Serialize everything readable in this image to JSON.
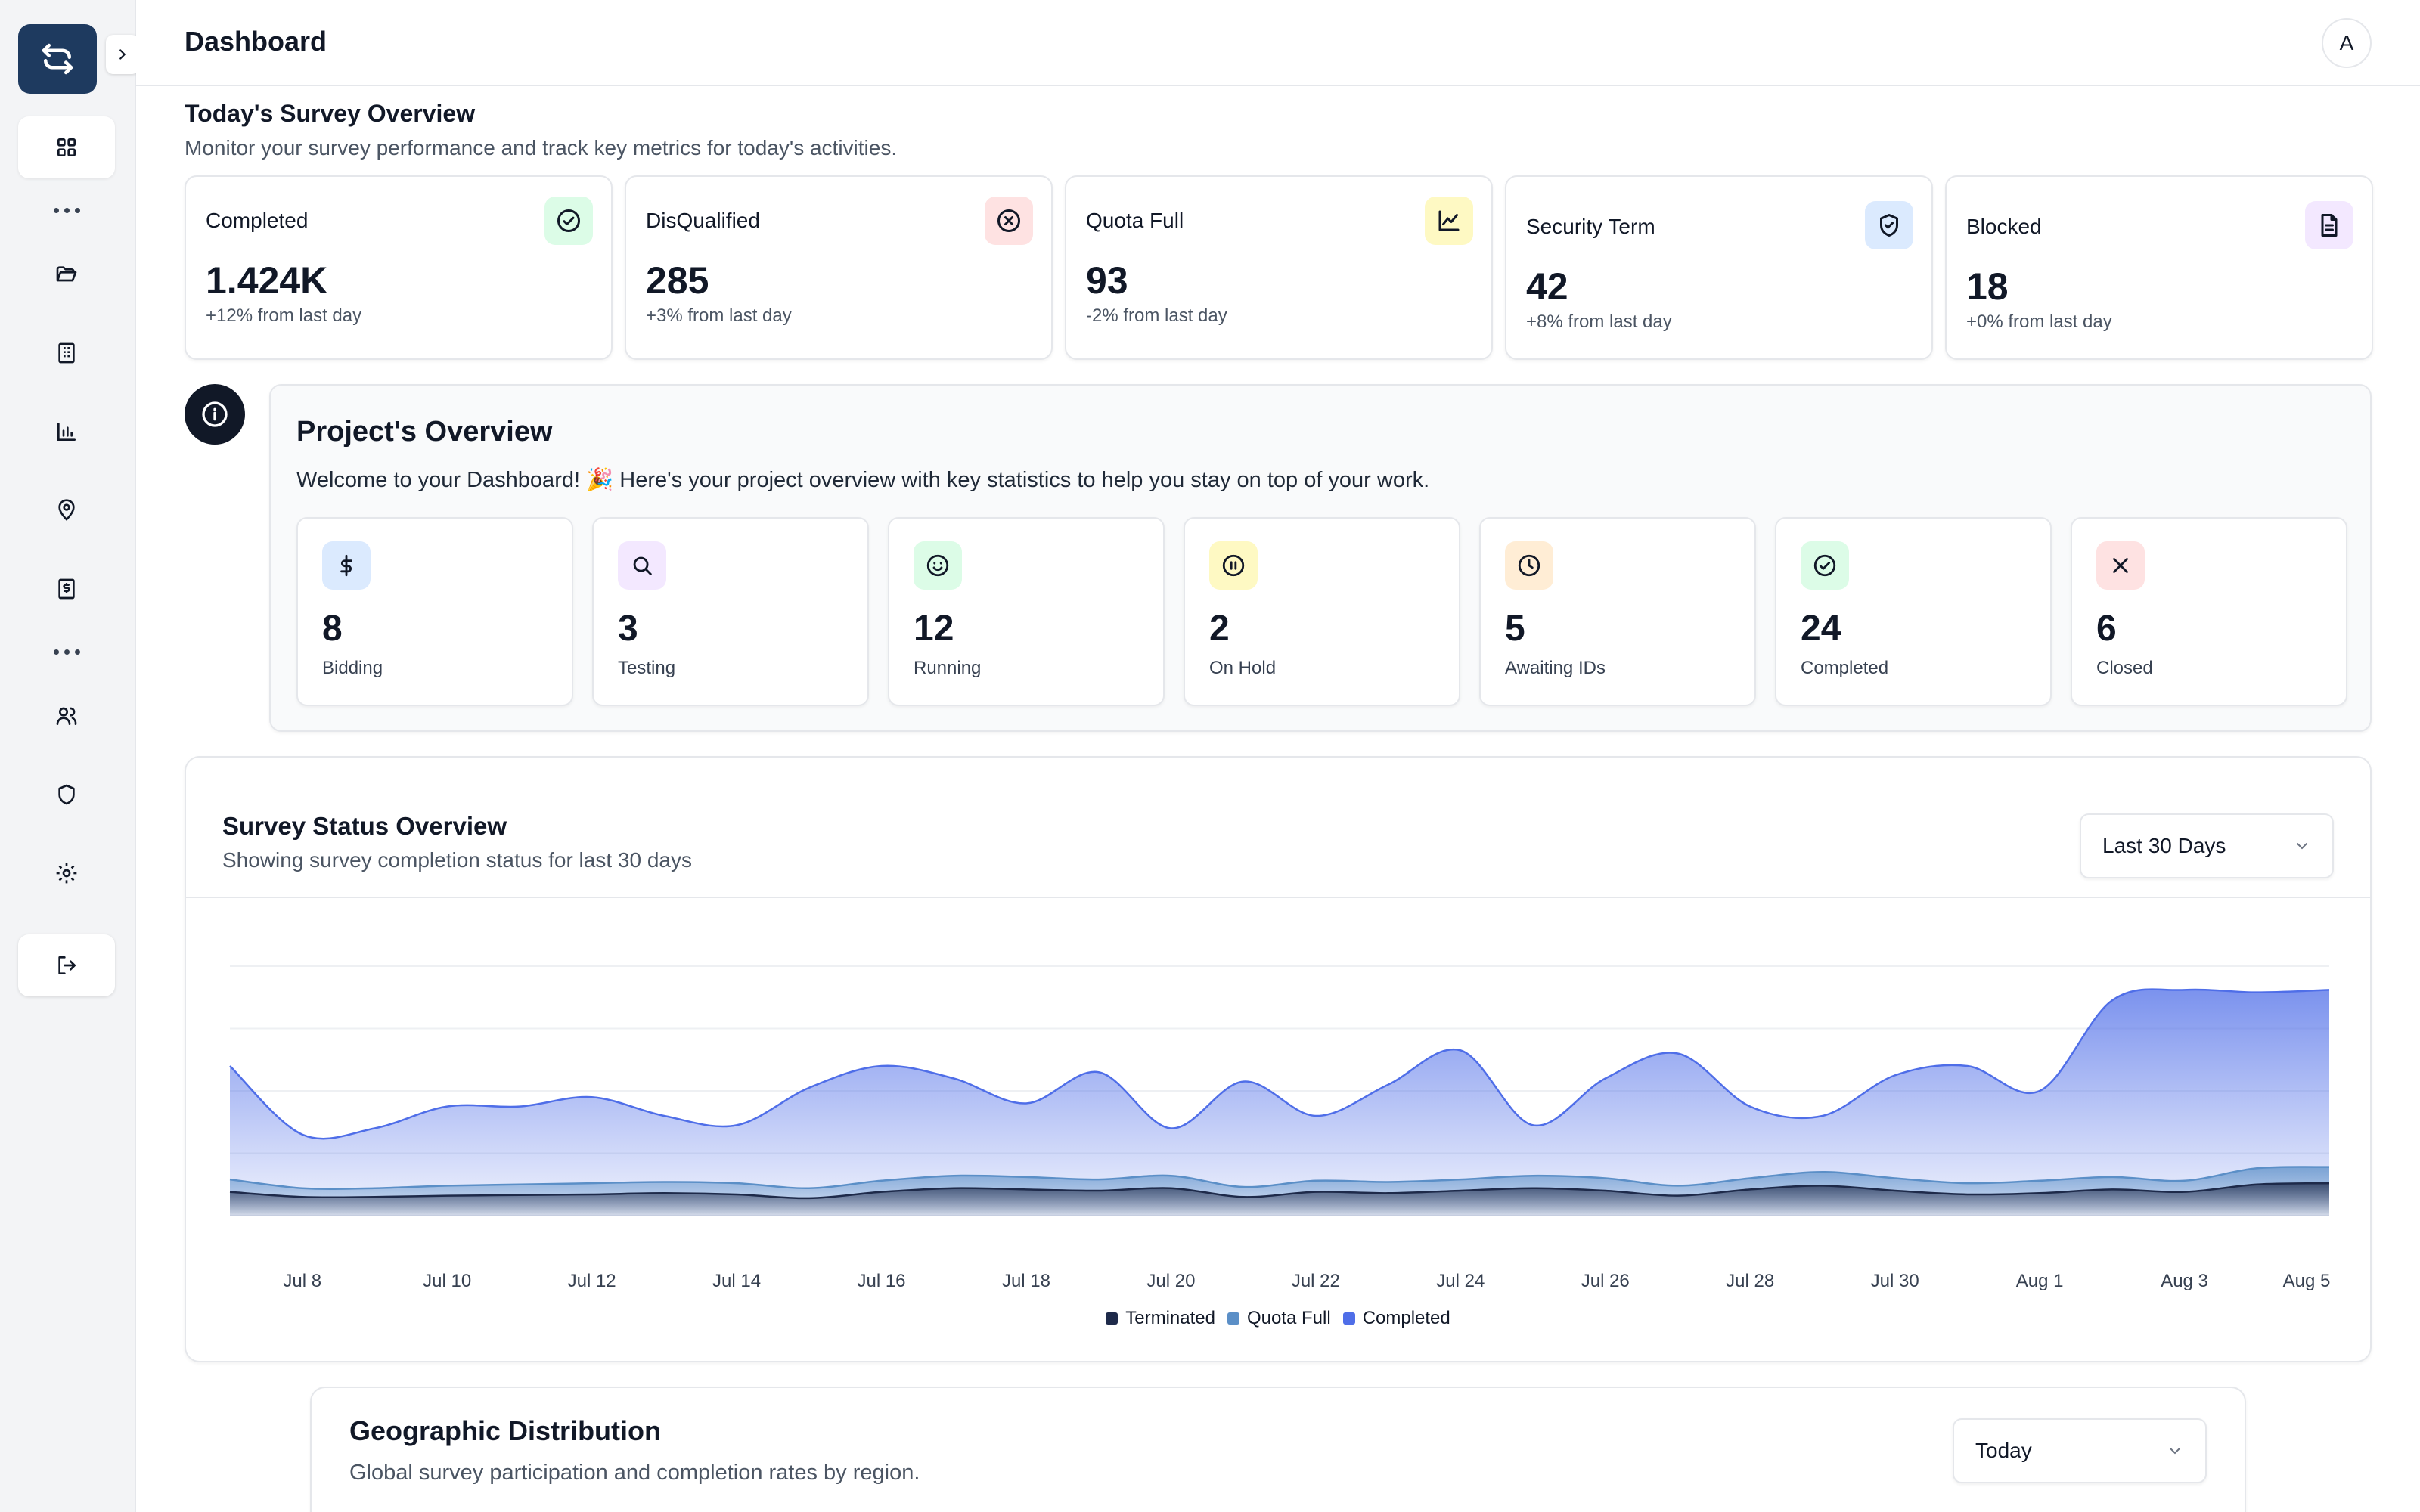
{
  "header": {
    "title": "Dashboard",
    "avatar_initial": "A"
  },
  "sidebar": {
    "items": [
      {
        "icon": "grid-icon",
        "active": true
      },
      {
        "icon": "more-dots-icon"
      },
      {
        "icon": "folder-open-icon"
      },
      {
        "icon": "building-icon"
      },
      {
        "icon": "bar-chart-icon"
      },
      {
        "icon": "map-pin-icon"
      },
      {
        "icon": "invoice-icon"
      },
      {
        "icon": "more-dots-icon"
      },
      {
        "icon": "users-icon"
      },
      {
        "icon": "shield-icon"
      },
      {
        "icon": "settings-icon"
      }
    ],
    "logout_icon": "logout-icon"
  },
  "overview": {
    "title": "Today's Survey Overview",
    "subtitle": "Monitor your survey performance and track key metrics for today's activities.",
    "cards": [
      {
        "label": "Completed",
        "value": "1.424K",
        "change": "+12% from last day",
        "icon": "check-circle-icon",
        "icon_bg": "#dcfce7"
      },
      {
        "label": "DisQualified",
        "value": "285",
        "change": "+3% from last day",
        "icon": "x-circle-icon",
        "icon_bg": "#fee2e2"
      },
      {
        "label": "Quota Full",
        "value": "93",
        "change": "-2% from last day",
        "icon": "line-chart-icon",
        "icon_bg": "#fef9c3"
      },
      {
        "label": "Security Term",
        "value": "42",
        "change": "+8% from last day",
        "icon": "shield-check-icon",
        "icon_bg": "#dbeafe"
      },
      {
        "label": "Blocked",
        "value": "18",
        "change": "+0% from last day",
        "icon": "file-text-icon",
        "icon_bg": "#f3e8ff"
      }
    ]
  },
  "project": {
    "title": "Project's Overview",
    "welcome": "Welcome to your Dashboard! 🎉 Here's your project overview with key statistics to help you stay on top of your work.",
    "stats": [
      {
        "value": "8",
        "label": "Bidding",
        "icon": "dollar-icon",
        "icon_bg": "#dbeafe"
      },
      {
        "value": "3",
        "label": "Testing",
        "icon": "search-icon",
        "icon_bg": "#f3e8ff"
      },
      {
        "value": "12",
        "label": "Running",
        "icon": "smile-icon",
        "icon_bg": "#dcfce7"
      },
      {
        "value": "2",
        "label": "On Hold",
        "icon": "pause-circle-icon",
        "icon_bg": "#fef9c3"
      },
      {
        "value": "5",
        "label": "Awaiting IDs",
        "icon": "clock-icon",
        "icon_bg": "#ffedd5"
      },
      {
        "value": "24",
        "label": "Completed",
        "icon": "check-circle-icon",
        "icon_bg": "#dcfce7"
      },
      {
        "value": "6",
        "label": "Closed",
        "icon": "x-icon",
        "icon_bg": "#fee2e2"
      }
    ]
  },
  "survey_status": {
    "title": "Survey Status Overview",
    "subtitle": "Showing survey completion status for last 30 days",
    "range": "Last 30 Days"
  },
  "chart_data": {
    "type": "area",
    "x": [
      "Jul 7",
      "Jul 8",
      "Jul 9",
      "Jul 10",
      "Jul 11",
      "Jul 12",
      "Jul 13",
      "Jul 14",
      "Jul 15",
      "Jul 16",
      "Jul 17",
      "Jul 18",
      "Jul 19",
      "Jul 20",
      "Jul 21",
      "Jul 22",
      "Jul 23",
      "Jul 24",
      "Jul 25",
      "Jul 26",
      "Jul 27",
      "Jul 28",
      "Jul 29",
      "Jul 30",
      "Jul 31",
      "Aug 1",
      "Aug 2",
      "Aug 3",
      "Aug 4",
      "Aug 5"
    ],
    "x_tick_labels": [
      "Jul 8",
      "Jul 10",
      "Jul 12",
      "Jul 14",
      "Jul 16",
      "Jul 18",
      "Jul 20",
      "Jul 22",
      "Jul 24",
      "Jul 26",
      "Jul 28",
      "Jul 30",
      "Aug 1",
      "Aug 3",
      "Aug 5"
    ],
    "ylim": [
      0,
      400
    ],
    "grid": true,
    "legend": "bottom",
    "series": [
      {
        "name": "Terminated",
        "color": "#1e2a4a",
        "values": [
          38,
          30,
          30,
          32,
          33,
          34,
          36,
          34,
          28,
          38,
          44,
          42,
          40,
          44,
          30,
          38,
          36,
          40,
          44,
          40,
          32,
          42,
          48,
          40,
          34,
          36,
          42,
          38,
          50,
          52
        ]
      },
      {
        "name": "Quota Full",
        "color": "#5b8fc7",
        "values": [
          58,
          44,
          44,
          48,
          50,
          52,
          54,
          52,
          44,
          56,
          64,
          62,
          58,
          64,
          46,
          56,
          54,
          58,
          64,
          60,
          48,
          60,
          70,
          60,
          52,
          56,
          62,
          56,
          76,
          78
        ]
      },
      {
        "name": "Completed",
        "color": "#4f6ee8",
        "values": [
          240,
          130,
          140,
          175,
          175,
          190,
          160,
          145,
          205,
          240,
          220,
          180,
          230,
          140,
          215,
          160,
          210,
          265,
          145,
          220,
          260,
          175,
          160,
          225,
          240,
          200,
          345,
          362,
          358,
          362
        ]
      }
    ]
  }
}
